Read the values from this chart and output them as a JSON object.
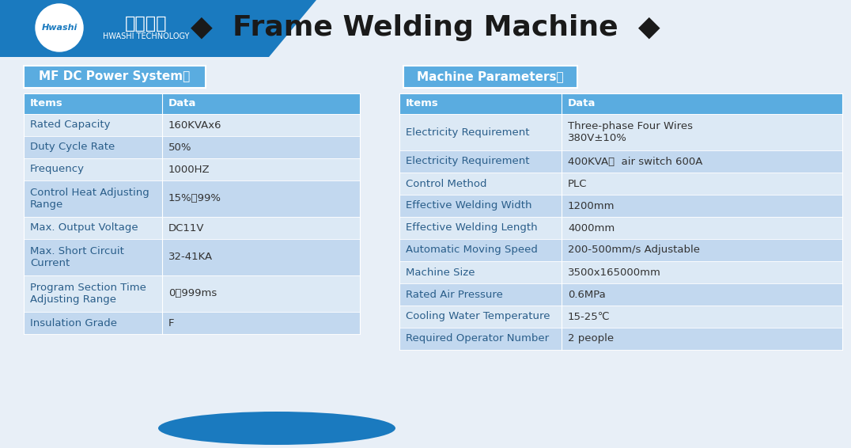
{
  "title": "Frame Welding Machine",
  "title_diamonds": "◆",
  "header_bg": "#1a7abf",
  "header_text_color": "#ffffff",
  "subheader_bg": "#5aace0",
  "row_light_bg": "#dce9f5",
  "row_medium_bg": "#c2d8ef",
  "top_bar_bg": "#1a7abf",
  "page_bg": "#e8eff7",
  "section1_title": "MF DC Power System：",
  "section2_title": "Machine Parameters：",
  "section_title_bg": "#5aace0",
  "section_title_text": "#ffffff",
  "table1_headers": [
    "Items",
    "Data"
  ],
  "table1_rows": [
    [
      "Rated Capacity",
      "160KVAx6"
    ],
    [
      "Duty Cycle Rate",
      "50%"
    ],
    [
      "Frequency",
      "1000HZ"
    ],
    [
      "Control Heat Adjusting\nRange",
      "15%～99%"
    ],
    [
      "Max. Output Voltage",
      "DC11V"
    ],
    [
      "Max. Short Circuit\nCurrent",
      "32-41KA"
    ],
    [
      "Program Section Time\nAdjusting Range",
      "0～999ms"
    ],
    [
      "Insulation Grade",
      "F"
    ]
  ],
  "table2_headers": [
    "Items",
    "Data"
  ],
  "table2_rows": [
    [
      "Electricity Requirement",
      "Three-phase Four Wires\n380V±10%"
    ],
    [
      "Electricity Requirement",
      "400KVA，  air switch 600A"
    ],
    [
      "Control Method",
      "PLC"
    ],
    [
      "Effective Welding Width",
      "1200mm"
    ],
    [
      "Effective Welding Length",
      "4000mm"
    ],
    [
      "Automatic Moving Speed",
      "200-500mm/s Adjustable"
    ],
    [
      "Machine Size",
      "3500x165000mm"
    ],
    [
      "Rated Air Pressure",
      "0.6MPa"
    ],
    [
      "Cooling Water Temperature",
      "15-25℃"
    ],
    [
      "Required Operator Number",
      "2 people"
    ]
  ],
  "company_name_cn": "华士科技",
  "company_name_en": "HWASHI TECHNOLOGY"
}
